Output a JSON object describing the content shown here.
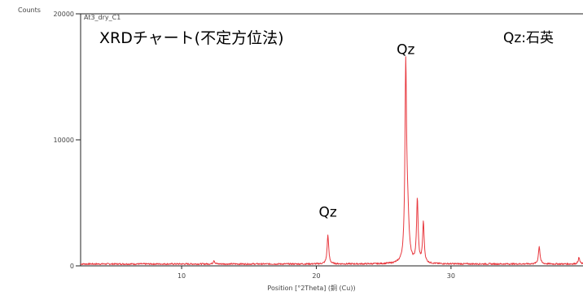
{
  "chart_data": {
    "type": "line",
    "ylabel": "Counts",
    "xlabel": "Position [°2Theta] (銅 (Cu))",
    "sample_name": "At3_dry_C1",
    "title": "XRDチャート(不定方位法)",
    "legend_note": "Qz:石英",
    "xlim": [
      2.5,
      39.8
    ],
    "ylim": [
      0,
      20000
    ],
    "x_ticks": [
      10,
      20,
      30
    ],
    "y_ticks": [
      0,
      10000,
      20000
    ],
    "grid": false,
    "series": [
      {
        "line_color": "#e8393f",
        "baseline": 150,
        "peaks": [
          {
            "x": 12.4,
            "y": 300,
            "w": 0.06
          },
          {
            "x": 20.86,
            "y": 2300,
            "w": 0.07
          },
          {
            "x": 26.64,
            "y": 15000,
            "w": 0.07
          },
          {
            "x": 26.78,
            "y": 3500,
            "w": 0.12
          },
          {
            "x": 27.5,
            "y": 5000,
            "w": 0.07
          },
          {
            "x": 27.95,
            "y": 3200,
            "w": 0.07
          },
          {
            "x": 36.55,
            "y": 1400,
            "w": 0.07
          },
          {
            "x": 39.5,
            "y": 500,
            "w": 0.07
          }
        ]
      }
    ],
    "annotations": [
      {
        "text": "Qz",
        "x": 20.86,
        "y": 3900
      },
      {
        "text": "Qz",
        "x": 26.64,
        "y": 16800
      }
    ]
  }
}
